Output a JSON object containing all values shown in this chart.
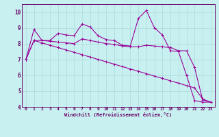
{
  "xlabel": "Windchill (Refroidissement éolien,°C)",
  "bg_color": "#c8f0f0",
  "line_color": "#990099",
  "grid_color": "#b0dede",
  "axis_color": "#660066",
  "spine_color": "#660066",
  "xlim": [
    -0.5,
    23.5
  ],
  "ylim": [
    4.0,
    10.5
  ],
  "xticks": [
    0,
    1,
    2,
    3,
    4,
    5,
    6,
    7,
    8,
    9,
    10,
    11,
    12,
    13,
    14,
    15,
    16,
    17,
    18,
    19,
    20,
    21,
    22,
    23
  ],
  "yticks": [
    4,
    5,
    6,
    7,
    8,
    9,
    10
  ],
  "line1_x": [
    0,
    1,
    2,
    3,
    4,
    5,
    6,
    7,
    8,
    9,
    10,
    11,
    12,
    13,
    14,
    15,
    16,
    17,
    18,
    19,
    20,
    21,
    22,
    23
  ],
  "line1_y": [
    7.0,
    8.9,
    8.2,
    8.2,
    8.65,
    8.55,
    8.5,
    9.25,
    9.05,
    8.5,
    8.25,
    8.2,
    7.9,
    7.85,
    9.6,
    10.1,
    9.0,
    8.55,
    7.55,
    7.5,
    6.0,
    4.4,
    4.3,
    4.3
  ],
  "line2_x": [
    0,
    1,
    2,
    3,
    4,
    5,
    6,
    7,
    8,
    9,
    10,
    11,
    12,
    13,
    14,
    15,
    16,
    17,
    18,
    19,
    20,
    21,
    22,
    23
  ],
  "line2_y": [
    7.0,
    8.2,
    8.2,
    8.15,
    8.1,
    8.05,
    8.0,
    8.3,
    8.2,
    8.1,
    8.0,
    7.95,
    7.85,
    7.8,
    7.8,
    7.9,
    7.85,
    7.8,
    7.75,
    7.55,
    7.55,
    6.5,
    4.45,
    4.3
  ],
  "line3_x": [
    0,
    1,
    2,
    3,
    4,
    5,
    6,
    7,
    8,
    9,
    10,
    11,
    12,
    13,
    14,
    15,
    16,
    17,
    18,
    19,
    20,
    21,
    22,
    23
  ],
  "line3_y": [
    7.0,
    8.2,
    8.05,
    7.9,
    7.75,
    7.6,
    7.45,
    7.3,
    7.15,
    7.0,
    6.85,
    6.7,
    6.55,
    6.4,
    6.25,
    6.1,
    5.95,
    5.8,
    5.65,
    5.5,
    5.35,
    5.2,
    4.5,
    4.3
  ]
}
